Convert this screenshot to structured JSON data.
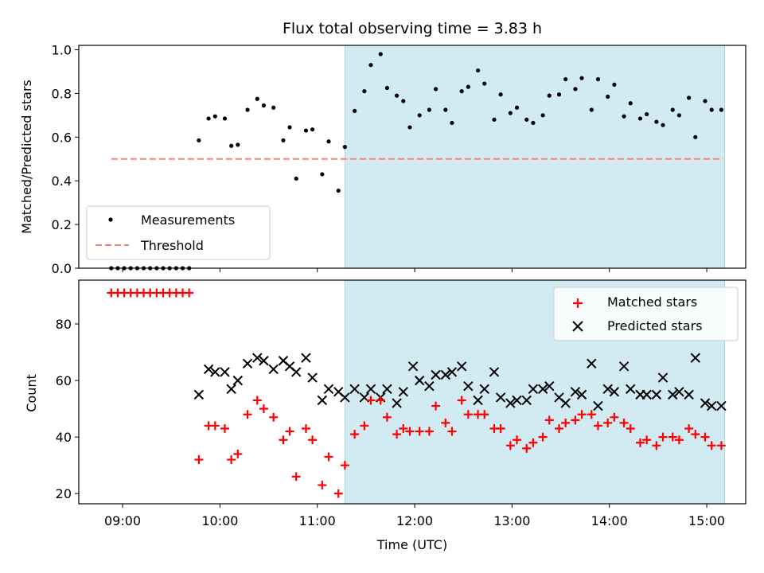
{
  "title": "Flux total observing time = 3.83 h",
  "colors": {
    "shade": "#add8e6",
    "threshold": "#ff7f7f",
    "measurement": "#000000",
    "matched": "#ff0000",
    "predicted": "#000000"
  },
  "chart_data": [
    {
      "type": "scatter",
      "name": "top",
      "ylabel": "Matched/Predicted stars",
      "ylim": [
        0,
        1.02
      ],
      "yticks": [
        0.0,
        0.2,
        0.4,
        0.6,
        0.8,
        1.0
      ],
      "ytick_labels": [
        "0.0",
        "0.2",
        "0.4",
        "0.6",
        "0.8",
        "1.0"
      ],
      "xlim": [
        "08:33",
        "15:24"
      ],
      "shaded_span": [
        "11:17",
        "15:11"
      ],
      "threshold": {
        "value": 0.5,
        "x_range": [
          "08:53",
          "15:10"
        ],
        "label": "Threshold"
      },
      "legend": {
        "position": "lower-left",
        "entries": [
          "Measurements",
          "Threshold"
        ]
      },
      "series": [
        {
          "name": "Measurements",
          "x": [
            "08:53",
            "08:57",
            "09:01",
            "09:05",
            "09:09",
            "09:13",
            "09:17",
            "09:21",
            "09:25",
            "09:29",
            "09:33",
            "09:37",
            "09:41",
            "09:47",
            "09:53",
            "09:57",
            "10:03",
            "10:07",
            "10:11",
            "10:17",
            "10:23",
            "10:27",
            "10:33",
            "10:39",
            "10:43",
            "10:47",
            "10:53",
            "10:57",
            "11:03",
            "11:07",
            "11:13",
            "11:17",
            "11:23",
            "11:29",
            "11:33",
            "11:39",
            "11:43",
            "11:49",
            "11:53",
            "11:57",
            "12:03",
            "12:09",
            "12:13",
            "12:19",
            "12:23",
            "12:29",
            "12:33",
            "12:39",
            "12:43",
            "12:49",
            "12:53",
            "12:59",
            "13:03",
            "13:09",
            "13:13",
            "13:19",
            "13:23",
            "13:29",
            "13:33",
            "13:39",
            "13:43",
            "13:49",
            "13:53",
            "13:59",
            "14:03",
            "14:09",
            "14:13",
            "14:19",
            "14:23",
            "14:29",
            "14:33",
            "14:39",
            "14:43",
            "14:49",
            "14:53",
            "14:59",
            "15:03",
            "15:09"
          ],
          "y": [
            0,
            0,
            0,
            0,
            0,
            0,
            0,
            0,
            0,
            0,
            0,
            0,
            0,
            0.585,
            0.685,
            0.695,
            0.685,
            0.56,
            0.565,
            0.725,
            0.775,
            0.745,
            0.735,
            0.585,
            0.645,
            0.41,
            0.63,
            0.635,
            0.43,
            0.58,
            0.355,
            0.555,
            0.72,
            0.81,
            0.93,
            0.98,
            0.825,
            0.79,
            0.765,
            0.645,
            0.7,
            0.725,
            0.82,
            0.725,
            0.665,
            0.81,
            0.83,
            0.905,
            0.845,
            0.68,
            0.795,
            0.71,
            0.735,
            0.68,
            0.665,
            0.7,
            0.79,
            0.795,
            0.865,
            0.82,
            0.87,
            0.725,
            0.865,
            0.785,
            0.84,
            0.695,
            0.755,
            0.685,
            0.705,
            0.67,
            0.655,
            0.725,
            0.7,
            0.78,
            0.6,
            0.765,
            0.725,
            0.725
          ]
        }
      ]
    },
    {
      "type": "scatter",
      "name": "bottom",
      "xlabel": "Time (UTC)",
      "ylabel": "Count",
      "ylim": [
        16.4,
        95.5
      ],
      "yticks": [
        20,
        40,
        60,
        80
      ],
      "ytick_labels": [
        "20",
        "40",
        "60",
        "80"
      ],
      "xlim": [
        "08:33",
        "15:24"
      ],
      "xticks": [
        "09:00",
        "10:00",
        "11:00",
        "12:00",
        "13:00",
        "14:00",
        "15:00"
      ],
      "xtick_labels": [
        "09:00",
        "10:00",
        "11:00",
        "12:00",
        "13:00",
        "14:00",
        "15:00"
      ],
      "shaded_span": [
        "11:17",
        "15:11"
      ],
      "legend": {
        "position": "top-right",
        "entries": [
          "Matched stars",
          "Predicted stars"
        ]
      },
      "series": [
        {
          "name": "Matched stars",
          "marker": "plus",
          "x": [
            "08:53",
            "08:57",
            "09:01",
            "09:05",
            "09:09",
            "09:13",
            "09:17",
            "09:21",
            "09:25",
            "09:29",
            "09:33",
            "09:37",
            "09:41",
            "09:47",
            "09:53",
            "09:57",
            "10:03",
            "10:07",
            "10:11",
            "10:17",
            "10:23",
            "10:27",
            "10:33",
            "10:39",
            "10:43",
            "10:47",
            "10:53",
            "10:57",
            "11:03",
            "11:07",
            "11:13",
            "11:17",
            "11:23",
            "11:29",
            "11:33",
            "11:39",
            "11:43",
            "11:49",
            "11:53",
            "11:57",
            "12:03",
            "12:09",
            "12:13",
            "12:19",
            "12:23",
            "12:29",
            "12:33",
            "12:39",
            "12:43",
            "12:49",
            "12:53",
            "12:59",
            "13:03",
            "13:09",
            "13:13",
            "13:19",
            "13:23",
            "13:29",
            "13:33",
            "13:39",
            "13:43",
            "13:49",
            "13:53",
            "13:59",
            "14:03",
            "14:09",
            "14:13",
            "14:19",
            "14:23",
            "14:29",
            "14:33",
            "14:39",
            "14:43",
            "14:49",
            "14:53",
            "14:59",
            "15:03",
            "15:09"
          ],
          "y": [
            91,
            91,
            91,
            91,
            91,
            91,
            91,
            91,
            91,
            91,
            91,
            91,
            91,
            32,
            44,
            44,
            43,
            32,
            34,
            48,
            53,
            50,
            47,
            39,
            42,
            26,
            43,
            39,
            23,
            33,
            20,
            30,
            41,
            44,
            53,
            53,
            47,
            41,
            43,
            42,
            42,
            42,
            51,
            45,
            42,
            53,
            48,
            48,
            48,
            43,
            43,
            37,
            39,
            36,
            38,
            40,
            46,
            43,
            45,
            46,
            48,
            48,
            44,
            45,
            47,
            45,
            43,
            38,
            39,
            37,
            40,
            40,
            39,
            43,
            41,
            40,
            37,
            37
          ]
        },
        {
          "name": "Predicted stars",
          "marker": "x",
          "x": [
            "09:47",
            "09:53",
            "09:57",
            "10:03",
            "10:07",
            "10:11",
            "10:17",
            "10:23",
            "10:27",
            "10:33",
            "10:39",
            "10:43",
            "10:47",
            "10:53",
            "10:57",
            "11:03",
            "11:07",
            "11:13",
            "11:17",
            "11:23",
            "11:29",
            "11:33",
            "11:39",
            "11:43",
            "11:49",
            "11:53",
            "11:59",
            "12:03",
            "12:09",
            "12:13",
            "12:19",
            "12:23",
            "12:29",
            "12:33",
            "12:39",
            "12:43",
            "12:49",
            "12:53",
            "12:59",
            "13:03",
            "13:09",
            "13:13",
            "13:19",
            "13:23",
            "13:29",
            "13:33",
            "13:39",
            "13:43",
            "13:49",
            "13:53",
            "13:59",
            "14:03",
            "14:09",
            "14:13",
            "14:19",
            "14:23",
            "14:29",
            "14:33",
            "14:39",
            "14:43",
            "14:49",
            "14:53",
            "14:59",
            "15:03",
            "15:09"
          ],
          "y": [
            55,
            64,
            63,
            63,
            57,
            60,
            66,
            68,
            67,
            64,
            67,
            65,
            63,
            68,
            61,
            53,
            57,
            56,
            54,
            57,
            54,
            57,
            54,
            57,
            52,
            56,
            65,
            60,
            58,
            62,
            62,
            63,
            65,
            58,
            53,
            57,
            63,
            54,
            52,
            53,
            53,
            57,
            57,
            58,
            54,
            52,
            56,
            55,
            66,
            51,
            57,
            56,
            65,
            57,
            55,
            55,
            55,
            61,
            55,
            56,
            55,
            68,
            52,
            51,
            51
          ]
        }
      ]
    }
  ]
}
